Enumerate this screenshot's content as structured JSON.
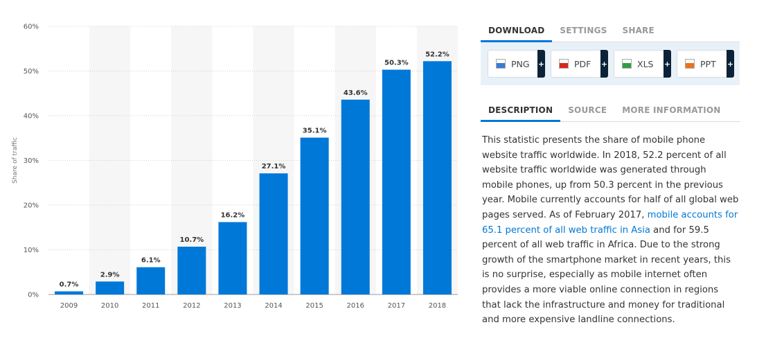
{
  "chart_data": {
    "type": "bar",
    "categories": [
      "2009",
      "2010",
      "2011",
      "2012",
      "2013",
      "2014",
      "2015",
      "2016",
      "2017",
      "2018"
    ],
    "values": [
      0.7,
      2.9,
      6.1,
      10.7,
      16.2,
      27.1,
      35.1,
      43.6,
      50.3,
      52.2
    ],
    "value_labels": [
      "0.7%",
      "2.9%",
      "6.1%",
      "10.7%",
      "16.2%",
      "27.1%",
      "35.1%",
      "43.6%",
      "50.3%",
      "52.2%"
    ],
    "ylabel": "Share of traffic",
    "ylim": [
      0,
      60
    ],
    "yticks": [
      0,
      10,
      20,
      30,
      40,
      50,
      60
    ],
    "ytick_labels": [
      "0%",
      "10%",
      "20%",
      "30%",
      "40%",
      "50%",
      "60%"
    ],
    "grid": true,
    "bar_color": "#0078d7"
  },
  "download_tabs": [
    {
      "label": "DOWNLOAD",
      "active": true
    },
    {
      "label": "SETTINGS",
      "active": false
    },
    {
      "label": "SHARE",
      "active": false
    }
  ],
  "download_buttons": [
    {
      "label": "PNG",
      "icon": "png-file-icon",
      "color": "#3a7bd5"
    },
    {
      "label": "PDF",
      "icon": "pdf-file-icon",
      "color": "#d9261c"
    },
    {
      "label": "XLS",
      "icon": "xls-file-icon",
      "color": "#2e9e44"
    },
    {
      "label": "PPT",
      "icon": "ppt-file-icon",
      "color": "#e8741c"
    }
  ],
  "plus_label": "+",
  "description_tabs": [
    {
      "label": "DESCRIPTION",
      "active": true
    },
    {
      "label": "SOURCE",
      "active": false
    },
    {
      "label": "MORE INFORMATION",
      "active": false
    }
  ],
  "description": {
    "part1": "This statistic presents the share of mobile phone website traffic worldwide. In 2018, 52.2 percent of all website traffic worldwide was generated through mobile phones, up from 50.3 percent in the previous year. Mobile currently accounts for half of all global web pages served. As of February 2017, ",
    "link": "mobile accounts for 65.1 percent of all web traffic in Asia",
    "part2": " and for 59.5 percent of all web traffic in Africa. Due to the strong growth of the smartphone market in recent years, this is no surprise, especially as mobile internet often provides a more viable online connection in regions that lack the infrastructure and money for traditional and more expensive landline connections."
  }
}
